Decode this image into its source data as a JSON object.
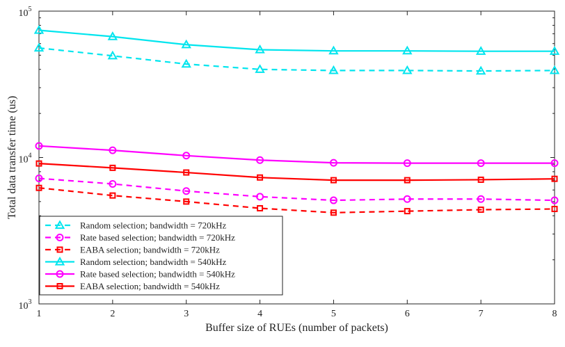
{
  "chart_data": {
    "type": "line",
    "xlabel": "Buffer size of RUEs (number of packets)",
    "ylabel": "Total data transfer time (us)",
    "yscale": "log",
    "xlim": [
      1,
      8
    ],
    "ylim": [
      1000,
      100000
    ],
    "x": [
      1,
      2,
      3,
      4,
      5,
      6,
      7,
      8
    ],
    "x_tick_labels": [
      "1",
      "2",
      "3",
      "4",
      "5",
      "6",
      "7",
      "8"
    ],
    "y_ticks": [
      {
        "value": 1000,
        "base": "10",
        "exp": "3"
      },
      {
        "value": 10000,
        "base": "10",
        "exp": "4"
      },
      {
        "value": 100000,
        "base": "10",
        "exp": "5"
      }
    ],
    "grid": false,
    "legend_position": "bottom-left",
    "series": [
      {
        "name": "Random selection; bandwidth = 720kHz",
        "color": "#00e5ee",
        "dash": "dashed",
        "marker": "triangle",
        "values": [
          56000,
          49500,
          43500,
          40000,
          39300,
          39300,
          39000,
          39300
        ]
      },
      {
        "name": "Rate based selection; bandwidth = 720kHz",
        "color": "#ff00ff",
        "dash": "dashed",
        "marker": "circle",
        "values": [
          7200,
          6600,
          5900,
          5400,
          5100,
          5200,
          5200,
          5100
        ]
      },
      {
        "name": "EABA selection; bandwidth = 720kHz",
        "color": "#ff0000",
        "dash": "dashed",
        "marker": "square",
        "values": [
          6200,
          5500,
          5000,
          4500,
          4200,
          4300,
          4400,
          4450
        ]
      },
      {
        "name": "Random selection; bandwidth = 540kHz",
        "color": "#00e5ee",
        "dash": "solid",
        "marker": "triangle",
        "values": [
          74000,
          67000,
          59000,
          54500,
          53500,
          53500,
          53200,
          53200
        ]
      },
      {
        "name": "Rate based selection; bandwidth = 540kHz",
        "color": "#ff00ff",
        "dash": "solid",
        "marker": "circle",
        "values": [
          12000,
          11200,
          10300,
          9600,
          9200,
          9150,
          9150,
          9150
        ]
      },
      {
        "name": "EABA selection; bandwidth = 540kHz",
        "color": "#ff0000",
        "dash": "solid",
        "marker": "square",
        "values": [
          9100,
          8500,
          7900,
          7300,
          7000,
          7000,
          7050,
          7150
        ]
      }
    ]
  }
}
